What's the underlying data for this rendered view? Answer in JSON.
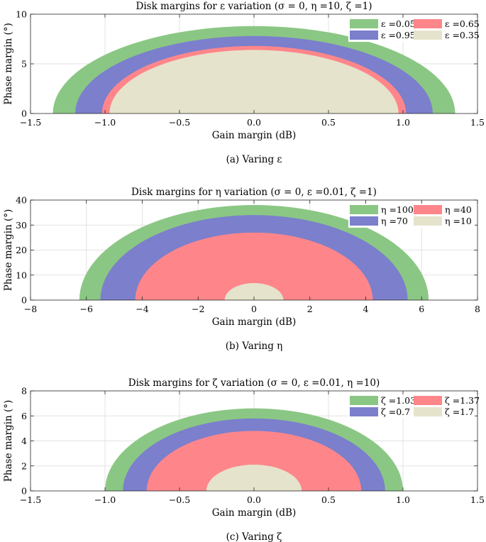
{
  "colors": {
    "green": "#8bc784",
    "blue": "#7b7fcc",
    "red": "#fe868b",
    "beige": "#e6e3cc"
  },
  "chart_data": [
    {
      "type": "area",
      "title": "Disk margins for ε variation (σ = 0, η =10, ζ =1)",
      "xlabel": "Gain margin (dB)",
      "ylabel": "Phase margin (°)",
      "caption": "(a) Varing ε",
      "xlim": [
        -1.5,
        1.5
      ],
      "ylim": [
        0,
        10
      ],
      "xticks": [
        -1.5,
        -1.0,
        -0.5,
        0.0,
        0.5,
        1.0,
        1.5
      ],
      "xtick_labels": [
        "−1.5",
        "−1.0",
        "−0.5",
        "0.0",
        "0.5",
        "1.0",
        "1.5"
      ],
      "yticks": [
        0,
        5,
        10
      ],
      "ytick_labels": [
        "0",
        "5",
        "10"
      ],
      "grid": true,
      "legend_position": "top-right",
      "series": [
        {
          "name": "ε =0.05",
          "color": "green",
          "gain_margin": 1.35,
          "phase_margin": 8.8
        },
        {
          "name": "ε =0.65",
          "color": "red",
          "gain_margin": 1.02,
          "phase_margin": 6.8
        },
        {
          "name": "ε =0.95",
          "color": "blue",
          "gain_margin": 1.2,
          "phase_margin": 7.8
        },
        {
          "name": "ε =0.35",
          "color": "beige",
          "gain_margin": 0.97,
          "phase_margin": 6.4
        }
      ],
      "draw_order": [
        0,
        2,
        1,
        3
      ]
    },
    {
      "type": "area",
      "title": "Disk margins for η variation (σ = 0, ε =0.01, ζ =1)",
      "xlabel": "Gain margin (dB)",
      "ylabel": "Phase margin (°)",
      "caption": "(b) Varing η",
      "xlim": [
        -8,
        8
      ],
      "ylim": [
        0,
        40
      ],
      "xticks": [
        -8,
        -6,
        -4,
        -2,
        0,
        2,
        4,
        6,
        8
      ],
      "xtick_labels": [
        "−8",
        "−6",
        "−4",
        "−2",
        "0",
        "2",
        "4",
        "6",
        "8"
      ],
      "yticks": [
        0,
        10,
        20,
        30,
        40
      ],
      "ytick_labels": [
        "0",
        "10",
        "20",
        "30",
        "40"
      ],
      "grid": true,
      "legend_position": "top-right",
      "series": [
        {
          "name": "η =100",
          "color": "green",
          "gain_margin": 6.25,
          "phase_margin": 38
        },
        {
          "name": "η =40",
          "color": "red",
          "gain_margin": 4.25,
          "phase_margin": 27
        },
        {
          "name": "η =70",
          "color": "blue",
          "gain_margin": 5.5,
          "phase_margin": 34
        },
        {
          "name": "η =10",
          "color": "beige",
          "gain_margin": 1.05,
          "phase_margin": 6.8
        }
      ],
      "draw_order": [
        0,
        2,
        1,
        3
      ]
    },
    {
      "type": "area",
      "title": "Disk margins for ζ variation (σ = 0, ε =0.01, η =10)",
      "xlabel": "Gain margin (dB)",
      "ylabel": "Phase margin (°)",
      "caption": "(c) Varing ζ",
      "xlim": [
        -1.5,
        1.5
      ],
      "ylim": [
        0,
        8
      ],
      "xticks": [
        -1.5,
        -1.0,
        -0.5,
        0.0,
        0.5,
        1.0,
        1.5
      ],
      "xtick_labels": [
        "−1.5",
        "−1.0",
        "−0.5",
        "0.0",
        "0.5",
        "1.0",
        "1.5"
      ],
      "yticks": [
        0,
        2,
        4,
        6,
        8
      ],
      "ytick_labels": [
        "0",
        "2",
        "4",
        "6",
        "8"
      ],
      "grid": true,
      "legend_position": "top-right",
      "series": [
        {
          "name": "ζ =1.03",
          "color": "green",
          "gain_margin": 1.0,
          "phase_margin": 6.6
        },
        {
          "name": "ζ =1.37",
          "color": "red",
          "gain_margin": 0.72,
          "phase_margin": 4.8
        },
        {
          "name": "ζ =0.7",
          "color": "blue",
          "gain_margin": 0.88,
          "phase_margin": 5.8
        },
        {
          "name": "ζ =1.7",
          "color": "beige",
          "gain_margin": 0.32,
          "phase_margin": 2.1
        }
      ],
      "draw_order": [
        0,
        2,
        1,
        3
      ]
    }
  ]
}
